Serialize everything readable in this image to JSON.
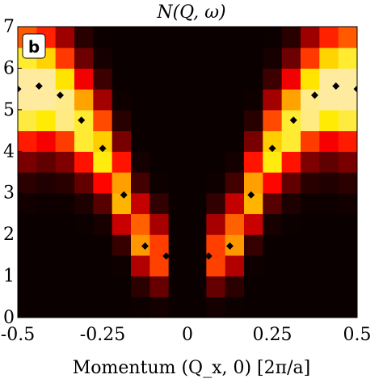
{
  "chart_data": {
    "type": "heatmap",
    "title": "N(Q, ω)",
    "panel_label": "b",
    "xlabel": "Momentum (Q_x, 0) [2π/a]",
    "ylabel": "",
    "xlim": [
      -0.5,
      0.5
    ],
    "ylim": [
      0,
      7
    ],
    "x_ticks": [
      "-0.5",
      "-0.25",
      "0",
      "0.25",
      "0.5"
    ],
    "x_tick_values": [
      -0.5,
      -0.25,
      0,
      0.25,
      0.5
    ],
    "y_ticks": [
      "0",
      "1",
      "2",
      "3",
      "4",
      "5",
      "6",
      "7"
    ],
    "y_tick_values": [
      0,
      1,
      2,
      3,
      4,
      5,
      6,
      7
    ],
    "colormap": "hot",
    "colors": {
      "background": "#0a0000",
      "marker": "#000000",
      "label_box": "#ffffff"
    },
    "heatmap_columns": 18,
    "heatmap_rows": 14,
    "series": [
      {
        "marker": "diamond",
        "x": [
          -0.5,
          -0.4375,
          -0.375,
          -0.3125,
          -0.25,
          -0.1875,
          -0.125,
          -0.0625,
          0.0625,
          0.125,
          0.1875,
          0.25,
          0.3125,
          0.375,
          0.4375,
          0.5
        ],
        "y": [
          5.5,
          5.57,
          5.35,
          4.75,
          4.07,
          2.95,
          1.72,
          1.48,
          1.48,
          1.72,
          2.95,
          4.07,
          4.75,
          5.35,
          5.57,
          5.5
        ]
      }
    ]
  }
}
